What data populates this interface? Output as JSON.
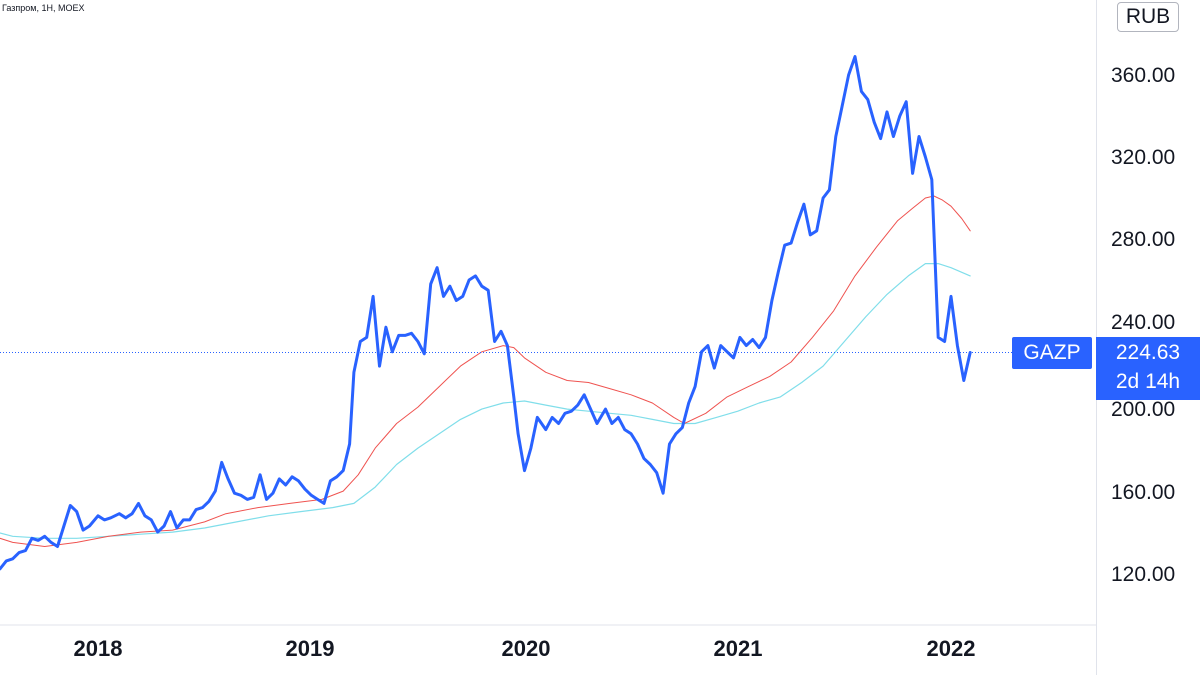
{
  "symbol_info": "Газпром, 1Н, MOEX",
  "currency": "RUB",
  "ticker": "GAZP",
  "last_price": "224.63",
  "countdown": "2d 14h",
  "colors": {
    "price_line": "#2962ff",
    "ma_fast": "#ef5350",
    "ma_slow": "#80deea",
    "last_price_line": "#2962ff",
    "badge": "#2962ff",
    "axis_border": "#e0e3eb",
    "text": "#131722"
  },
  "chart_data": {
    "type": "line",
    "ylim": [
      100,
      375
    ],
    "xlim": [
      2017.45,
      2022.58
    ],
    "y_ticks": [
      "120.00",
      "160.00",
      "200.00",
      "240.00",
      "280.00",
      "320.00",
      "360.00"
    ],
    "x_ticks": [
      "2018",
      "2019",
      "2020",
      "2021",
      "2022"
    ],
    "grid": false,
    "last_price_value": 224.63,
    "series": [
      {
        "role": "price",
        "points": [
          [
            2017.45,
            119
          ],
          [
            2017.48,
            115
          ],
          [
            2017.51,
            120
          ],
          [
            2017.54,
            119
          ],
          [
            2017.57,
            123
          ],
          [
            2017.6,
            124
          ],
          [
            2017.63,
            127
          ],
          [
            2017.66,
            128
          ],
          [
            2017.69,
            134
          ],
          [
            2017.72,
            133
          ],
          [
            2017.75,
            135
          ],
          [
            2017.78,
            132
          ],
          [
            2017.81,
            130
          ],
          [
            2017.84,
            140
          ],
          [
            2017.87,
            150
          ],
          [
            2017.9,
            147
          ],
          [
            2017.93,
            138
          ],
          [
            2017.96,
            140
          ],
          [
            2018.0,
            145
          ],
          [
            2018.03,
            143
          ],
          [
            2018.06,
            144
          ],
          [
            2018.1,
            146
          ],
          [
            2018.13,
            144
          ],
          [
            2018.16,
            146
          ],
          [
            2018.19,
            151
          ],
          [
            2018.22,
            145
          ],
          [
            2018.25,
            143
          ],
          [
            2018.28,
            137
          ],
          [
            2018.31,
            140
          ],
          [
            2018.34,
            147
          ],
          [
            2018.37,
            139
          ],
          [
            2018.4,
            143
          ],
          [
            2018.43,
            143
          ],
          [
            2018.46,
            148
          ],
          [
            2018.49,
            149
          ],
          [
            2018.52,
            152
          ],
          [
            2018.55,
            157
          ],
          [
            2018.58,
            171
          ],
          [
            2018.61,
            163
          ],
          [
            2018.64,
            156
          ],
          [
            2018.67,
            155
          ],
          [
            2018.7,
            153
          ],
          [
            2018.73,
            154
          ],
          [
            2018.76,
            165
          ],
          [
            2018.79,
            153
          ],
          [
            2018.82,
            156
          ],
          [
            2018.85,
            163
          ],
          [
            2018.88,
            160
          ],
          [
            2018.91,
            164
          ],
          [
            2018.94,
            162
          ],
          [
            2018.97,
            158
          ],
          [
            2019.0,
            155
          ],
          [
            2019.03,
            153
          ],
          [
            2019.06,
            151
          ],
          [
            2019.09,
            162
          ],
          [
            2019.12,
            164
          ],
          [
            2019.15,
            167
          ],
          [
            2019.18,
            180
          ],
          [
            2019.2,
            215
          ],
          [
            2019.23,
            230
          ],
          [
            2019.26,
            232
          ],
          [
            2019.29,
            252
          ],
          [
            2019.32,
            218
          ],
          [
            2019.35,
            237
          ],
          [
            2019.38,
            225
          ],
          [
            2019.41,
            233
          ],
          [
            2019.44,
            233
          ],
          [
            2019.47,
            234
          ],
          [
            2019.5,
            230
          ],
          [
            2019.53,
            224
          ],
          [
            2019.56,
            258
          ],
          [
            2019.59,
            266
          ],
          [
            2019.62,
            252
          ],
          [
            2019.65,
            257
          ],
          [
            2019.68,
            250
          ],
          [
            2019.71,
            252
          ],
          [
            2019.74,
            260
          ],
          [
            2019.77,
            262
          ],
          [
            2019.8,
            257
          ],
          [
            2019.83,
            255
          ],
          [
            2019.86,
            230
          ],
          [
            2019.89,
            235
          ],
          [
            2019.92,
            228
          ],
          [
            2019.95,
            203
          ],
          [
            2019.97,
            185
          ],
          [
            2020.0,
            167
          ],
          [
            2020.03,
            178
          ],
          [
            2020.06,
            193
          ],
          [
            2020.1,
            187
          ],
          [
            2020.13,
            193
          ],
          [
            2020.16,
            190
          ],
          [
            2020.19,
            195
          ],
          [
            2020.22,
            196
          ],
          [
            2020.25,
            199
          ],
          [
            2020.28,
            204
          ],
          [
            2020.31,
            197
          ],
          [
            2020.34,
            190
          ],
          [
            2020.38,
            197
          ],
          [
            2020.41,
            190
          ],
          [
            2020.44,
            193
          ],
          [
            2020.47,
            187
          ],
          [
            2020.5,
            185
          ],
          [
            2020.53,
            180
          ],
          [
            2020.56,
            173
          ],
          [
            2020.59,
            170
          ],
          [
            2020.62,
            166
          ],
          [
            2020.65,
            156
          ],
          [
            2020.68,
            180
          ],
          [
            2020.71,
            185
          ],
          [
            2020.74,
            188
          ],
          [
            2020.77,
            200
          ],
          [
            2020.8,
            208
          ],
          [
            2020.83,
            225
          ],
          [
            2020.86,
            228
          ],
          [
            2020.89,
            217
          ],
          [
            2020.92,
            228
          ],
          [
            2020.95,
            225
          ],
          [
            2020.98,
            222
          ],
          [
            2021.01,
            232
          ],
          [
            2021.04,
            228
          ],
          [
            2021.07,
            231
          ],
          [
            2021.1,
            227
          ],
          [
            2021.13,
            232
          ],
          [
            2021.16,
            250
          ],
          [
            2021.19,
            264
          ],
          [
            2021.22,
            277
          ],
          [
            2021.25,
            278
          ],
          [
            2021.28,
            288
          ],
          [
            2021.31,
            297
          ],
          [
            2021.34,
            282
          ],
          [
            2021.37,
            284
          ],
          [
            2021.4,
            300
          ],
          [
            2021.43,
            304
          ],
          [
            2021.46,
            330
          ],
          [
            2021.49,
            345
          ],
          [
            2021.52,
            360
          ],
          [
            2021.55,
            369
          ],
          [
            2021.58,
            352
          ],
          [
            2021.61,
            348
          ],
          [
            2021.64,
            337
          ],
          [
            2021.67,
            329
          ],
          [
            2021.7,
            342
          ],
          [
            2021.73,
            330
          ],
          [
            2021.76,
            340
          ],
          [
            2021.79,
            347
          ],
          [
            2021.82,
            312
          ],
          [
            2021.85,
            330
          ],
          [
            2021.88,
            320
          ],
          [
            2021.91,
            309
          ],
          [
            2021.94,
            232
          ],
          [
            2021.97,
            230
          ],
          [
            2022.0,
            252
          ],
          [
            2022.03,
            228
          ],
          [
            2022.06,
            211
          ],
          [
            2022.09,
            224.63
          ]
        ]
      },
      {
        "role": "moving-average-fast",
        "points": [
          [
            2017.45,
            137
          ],
          [
            2017.6,
            132
          ],
          [
            2017.75,
            130
          ],
          [
            2017.9,
            132
          ],
          [
            2018.05,
            135
          ],
          [
            2018.2,
            137
          ],
          [
            2018.35,
            138
          ],
          [
            2018.5,
            142
          ],
          [
            2018.6,
            146
          ],
          [
            2018.75,
            149
          ],
          [
            2018.9,
            151
          ],
          [
            2019.05,
            153
          ],
          [
            2019.15,
            157
          ],
          [
            2019.22,
            165
          ],
          [
            2019.3,
            178
          ],
          [
            2019.4,
            190
          ],
          [
            2019.5,
            198
          ],
          [
            2019.6,
            208
          ],
          [
            2019.7,
            218
          ],
          [
            2019.8,
            225
          ],
          [
            2019.9,
            228
          ],
          [
            2019.95,
            227
          ],
          [
            2020.0,
            222
          ],
          [
            2020.1,
            215
          ],
          [
            2020.2,
            211
          ],
          [
            2020.3,
            210
          ],
          [
            2020.4,
            207
          ],
          [
            2020.5,
            204
          ],
          [
            2020.6,
            200
          ],
          [
            2020.7,
            193
          ],
          [
            2020.75,
            190
          ],
          [
            2020.85,
            195
          ],
          [
            2020.95,
            203
          ],
          [
            2021.05,
            208
          ],
          [
            2021.15,
            213
          ],
          [
            2021.25,
            220
          ],
          [
            2021.35,
            232
          ],
          [
            2021.45,
            245
          ],
          [
            2021.55,
            262
          ],
          [
            2021.65,
            276
          ],
          [
            2021.75,
            289
          ],
          [
            2021.82,
            295
          ],
          [
            2021.88,
            300
          ],
          [
            2021.92,
            301
          ],
          [
            2021.96,
            299
          ],
          [
            2022.0,
            296
          ],
          [
            2022.05,
            290
          ],
          [
            2022.09,
            284
          ]
        ]
      },
      {
        "role": "moving-average-slow",
        "points": [
          [
            2017.45,
            139
          ],
          [
            2017.6,
            135
          ],
          [
            2017.75,
            134
          ],
          [
            2017.9,
            134
          ],
          [
            2018.05,
            135
          ],
          [
            2018.2,
            136
          ],
          [
            2018.35,
            137
          ],
          [
            2018.5,
            139
          ],
          [
            2018.65,
            142
          ],
          [
            2018.8,
            145
          ],
          [
            2018.95,
            147
          ],
          [
            2019.1,
            149
          ],
          [
            2019.2,
            151
          ],
          [
            2019.3,
            159
          ],
          [
            2019.4,
            170
          ],
          [
            2019.5,
            178
          ],
          [
            2019.6,
            185
          ],
          [
            2019.7,
            192
          ],
          [
            2019.8,
            197
          ],
          [
            2019.9,
            200
          ],
          [
            2020.0,
            201
          ],
          [
            2020.1,
            199
          ],
          [
            2020.2,
            197
          ],
          [
            2020.3,
            196
          ],
          [
            2020.4,
            195
          ],
          [
            2020.5,
            194
          ],
          [
            2020.6,
            192
          ],
          [
            2020.7,
            190
          ],
          [
            2020.8,
            190
          ],
          [
            2020.9,
            193
          ],
          [
            2021.0,
            196
          ],
          [
            2021.1,
            200
          ],
          [
            2021.2,
            203
          ],
          [
            2021.3,
            210
          ],
          [
            2021.4,
            218
          ],
          [
            2021.5,
            230
          ],
          [
            2021.6,
            242
          ],
          [
            2021.7,
            253
          ],
          [
            2021.8,
            262
          ],
          [
            2021.88,
            268
          ],
          [
            2021.94,
            268
          ],
          [
            2022.0,
            266
          ],
          [
            2022.09,
            262
          ]
        ]
      }
    ]
  }
}
